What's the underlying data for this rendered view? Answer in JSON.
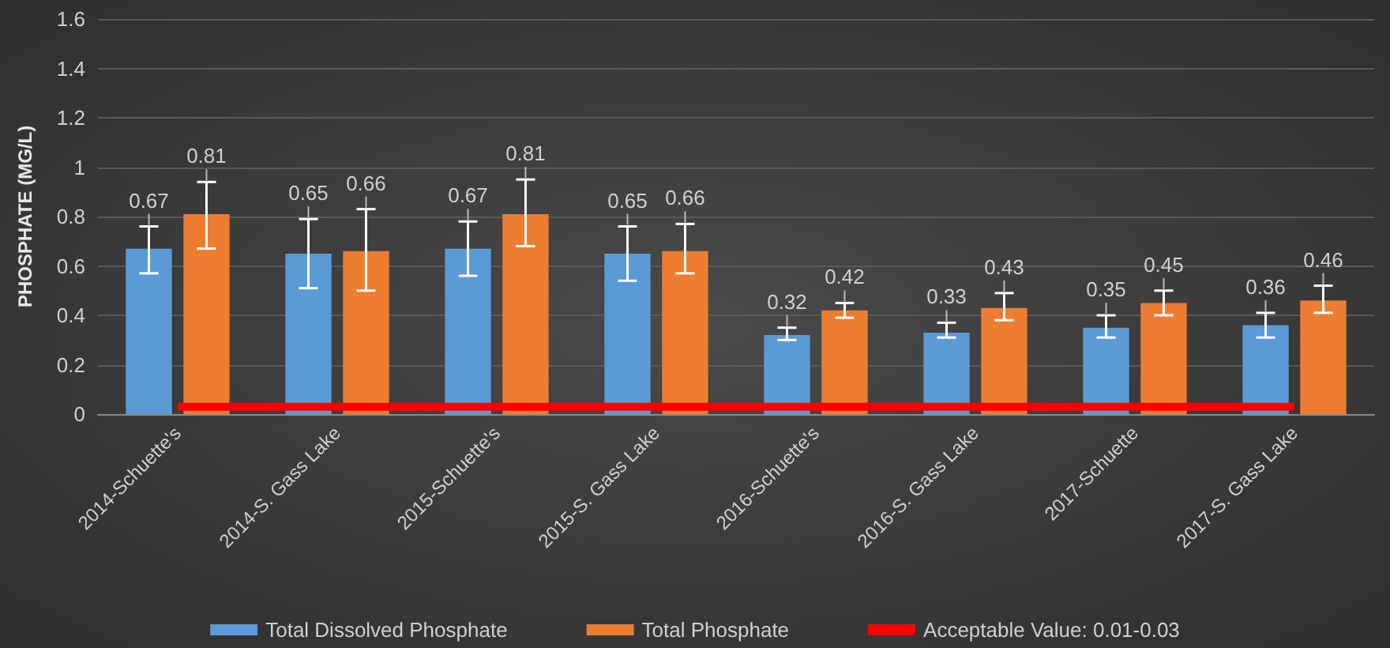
{
  "chart_data": {
    "type": "bar",
    "ylabel": "PHOSPHATE (MG/L)",
    "categories": [
      "2014-Schuette's",
      "2014-S. Gass Lake",
      "2015-Schuette's",
      "2015-S. Gass Lake",
      "2016-Schuette's",
      "2016-S. Gass Lake",
      "2017-Schuette",
      "2017-S. Gass Lake"
    ],
    "series": [
      {
        "name": "Total Dissolved Phosphate",
        "color": "#5b9bd5",
        "values": [
          0.67,
          0.65,
          0.67,
          0.65,
          0.32,
          0.33,
          0.35,
          0.36
        ],
        "value_labels": [
          "0.67",
          "0.65",
          "0.67",
          "0.65",
          "0.32",
          "0.33",
          "0.35",
          "0.36"
        ],
        "errors": [
          [
            0.57,
            0.76
          ],
          [
            0.51,
            0.79
          ],
          [
            0.56,
            0.78
          ],
          [
            0.54,
            0.76
          ],
          [
            0.3,
            0.35
          ],
          [
            0.31,
            0.37
          ],
          [
            0.31,
            0.4
          ],
          [
            0.31,
            0.41
          ]
        ]
      },
      {
        "name": "Total Phosphate",
        "color": "#ed7d31",
        "values": [
          0.81,
          0.66,
          0.81,
          0.66,
          0.42,
          0.43,
          0.45,
          0.46
        ],
        "value_labels": [
          "0.81",
          "0.66",
          "0.81",
          "0.66",
          "0.42",
          "0.43",
          "0.45",
          "0.46"
        ],
        "errors": [
          [
            0.67,
            0.94
          ],
          [
            0.5,
            0.83
          ],
          [
            0.68,
            0.95
          ],
          [
            0.57,
            0.77
          ],
          [
            0.39,
            0.45
          ],
          [
            0.38,
            0.49
          ],
          [
            0.4,
            0.5
          ],
          [
            0.41,
            0.52
          ]
        ]
      },
      {
        "name": "Acceptable Value: 0.01-0.03",
        "type": "line",
        "color": "#ff0000",
        "values": [
          0.03,
          0.03,
          0.03,
          0.03,
          0.03,
          0.03,
          0.03,
          0.03
        ]
      }
    ],
    "ylim": [
      0,
      1.6
    ],
    "yticks": [
      0,
      0.2,
      0.4,
      0.6,
      0.8,
      1,
      1.2,
      1.4,
      1.6
    ],
    "grid": "y",
    "legend": "bottom"
  }
}
